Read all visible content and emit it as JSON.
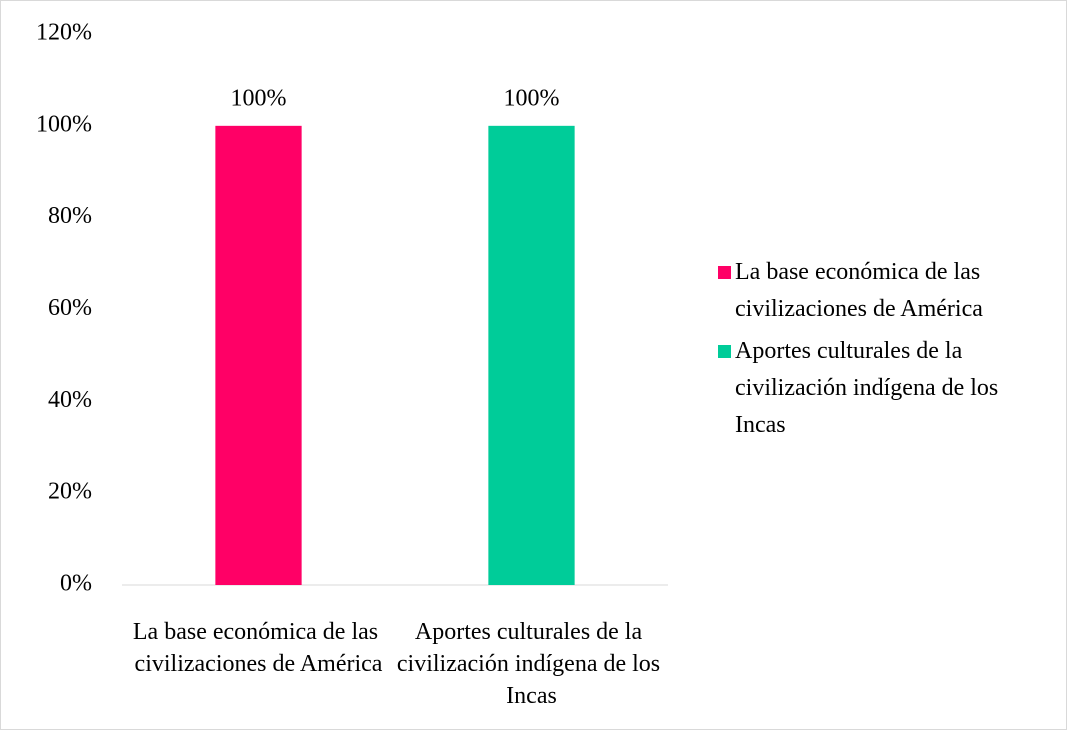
{
  "chart_data": {
    "type": "bar",
    "categories": [
      "La base económica de las civilizaciones de América",
      "Aportes culturales de la civilización indígena de los Incas"
    ],
    "values": [
      100,
      100
    ],
    "value_labels": [
      "100%",
      "100%"
    ],
    "colors": [
      "#ff0066",
      "#00cc99"
    ],
    "ylim": [
      0,
      120
    ],
    "yticks": [
      {
        "value": 0,
        "label": "0%"
      },
      {
        "value": 20,
        "label": "20%"
      },
      {
        "value": 40,
        "label": "40%"
      },
      {
        "value": 60,
        "label": "60%"
      },
      {
        "value": 80,
        "label": "80%"
      },
      {
        "value": 100,
        "label": "100%"
      },
      {
        "value": 120,
        "label": "120%"
      }
    ],
    "grid": false,
    "legend": "right"
  }
}
